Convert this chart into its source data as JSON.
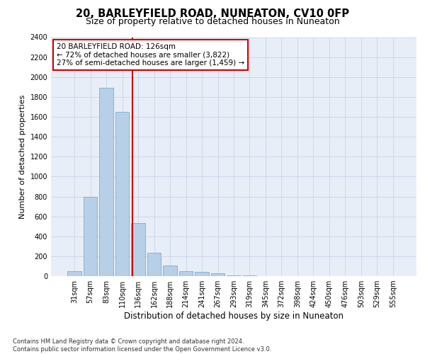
{
  "title": "20, BARLEYFIELD ROAD, NUNEATON, CV10 0FP",
  "subtitle": "Size of property relative to detached houses in Nuneaton",
  "xlabel": "Distribution of detached houses by size in Nuneaton",
  "ylabel": "Number of detached properties",
  "categories": [
    "31sqm",
    "57sqm",
    "83sqm",
    "110sqm",
    "136sqm",
    "162sqm",
    "188sqm",
    "214sqm",
    "241sqm",
    "267sqm",
    "293sqm",
    "319sqm",
    "345sqm",
    "372sqm",
    "398sqm",
    "424sqm",
    "450sqm",
    "476sqm",
    "503sqm",
    "529sqm",
    "555sqm"
  ],
  "values": [
    50,
    800,
    1890,
    1650,
    535,
    235,
    105,
    50,
    40,
    25,
    10,
    5,
    2,
    1,
    0,
    0,
    0,
    0,
    0,
    0,
    0
  ],
  "bar_color": "#b8cfe8",
  "bar_edgecolor": "#7aadd4",
  "vline_color": "#cc0000",
  "annotation_text": "20 BARLEYFIELD ROAD: 126sqm\n← 72% of detached houses are smaller (3,822)\n27% of semi-detached houses are larger (1,459) →",
  "annotation_box_color": "#ffffff",
  "annotation_box_edgecolor": "#cc0000",
  "ylim": [
    0,
    2400
  ],
  "yticks": [
    0,
    200,
    400,
    600,
    800,
    1000,
    1200,
    1400,
    1600,
    1800,
    2000,
    2200,
    2400
  ],
  "grid_color": "#c8d4e8",
  "bg_color": "#e8eef8",
  "footer": "Contains HM Land Registry data © Crown copyright and database right 2024.\nContains public sector information licensed under the Open Government Licence v3.0.",
  "title_fontsize": 10.5,
  "subtitle_fontsize": 9,
  "xlabel_fontsize": 8.5,
  "ylabel_fontsize": 8,
  "tick_fontsize": 7,
  "annotation_fontsize": 7.5,
  "footer_fontsize": 6
}
